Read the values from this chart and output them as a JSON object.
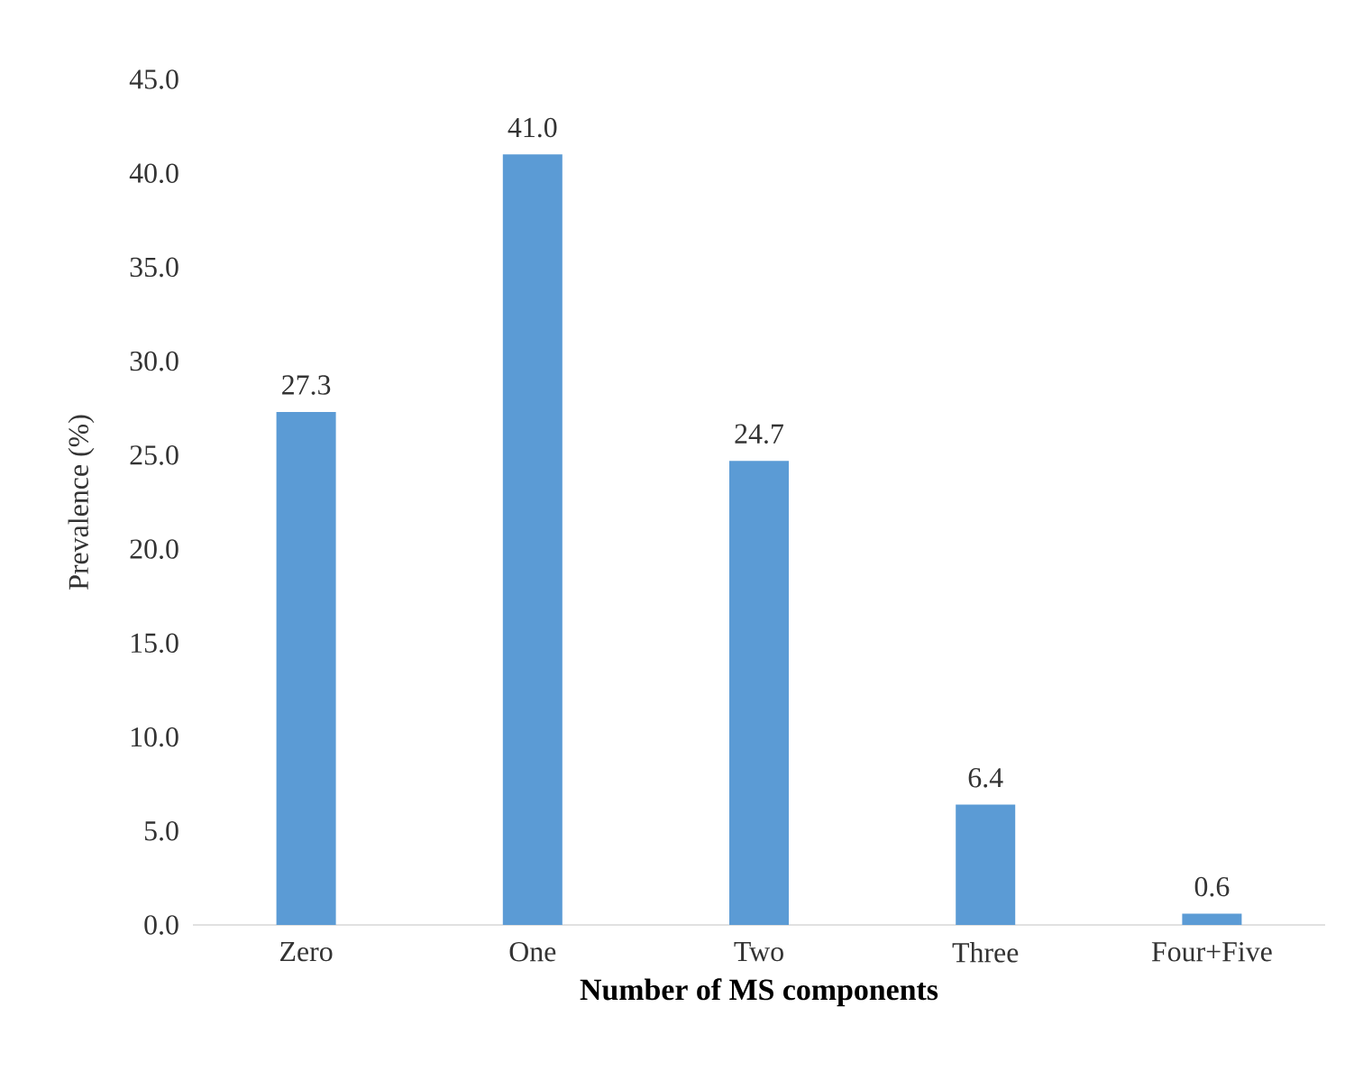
{
  "chart_data": {
    "type": "bar",
    "ylabel": "Prevalence (%)",
    "xlabel": "Number of MS components",
    "categories": [
      "Zero",
      "One",
      "Two",
      "Three",
      "Four+Five"
    ],
    "values": [
      27.3,
      41.0,
      24.7,
      6.4,
      0.6
    ],
    "value_labels": [
      "27.3",
      "41.0",
      "24.7",
      "6.4",
      "0.6"
    ],
    "color": "#5b9bd5",
    "ylim": [
      0,
      45
    ],
    "yticks": [
      {
        "value": 0,
        "label": "0.0"
      },
      {
        "value": 5,
        "label": "5.0"
      },
      {
        "value": 10,
        "label": "10.0"
      },
      {
        "value": 15,
        "label": "15.0"
      },
      {
        "value": 20,
        "label": "20.0"
      },
      {
        "value": 25,
        "label": "25.0"
      },
      {
        "value": 30,
        "label": "30.0"
      },
      {
        "value": 35,
        "label": "35.0"
      },
      {
        "value": 40,
        "label": "40.0"
      },
      {
        "value": 45,
        "label": "45.0"
      }
    ],
    "grid": false
  }
}
